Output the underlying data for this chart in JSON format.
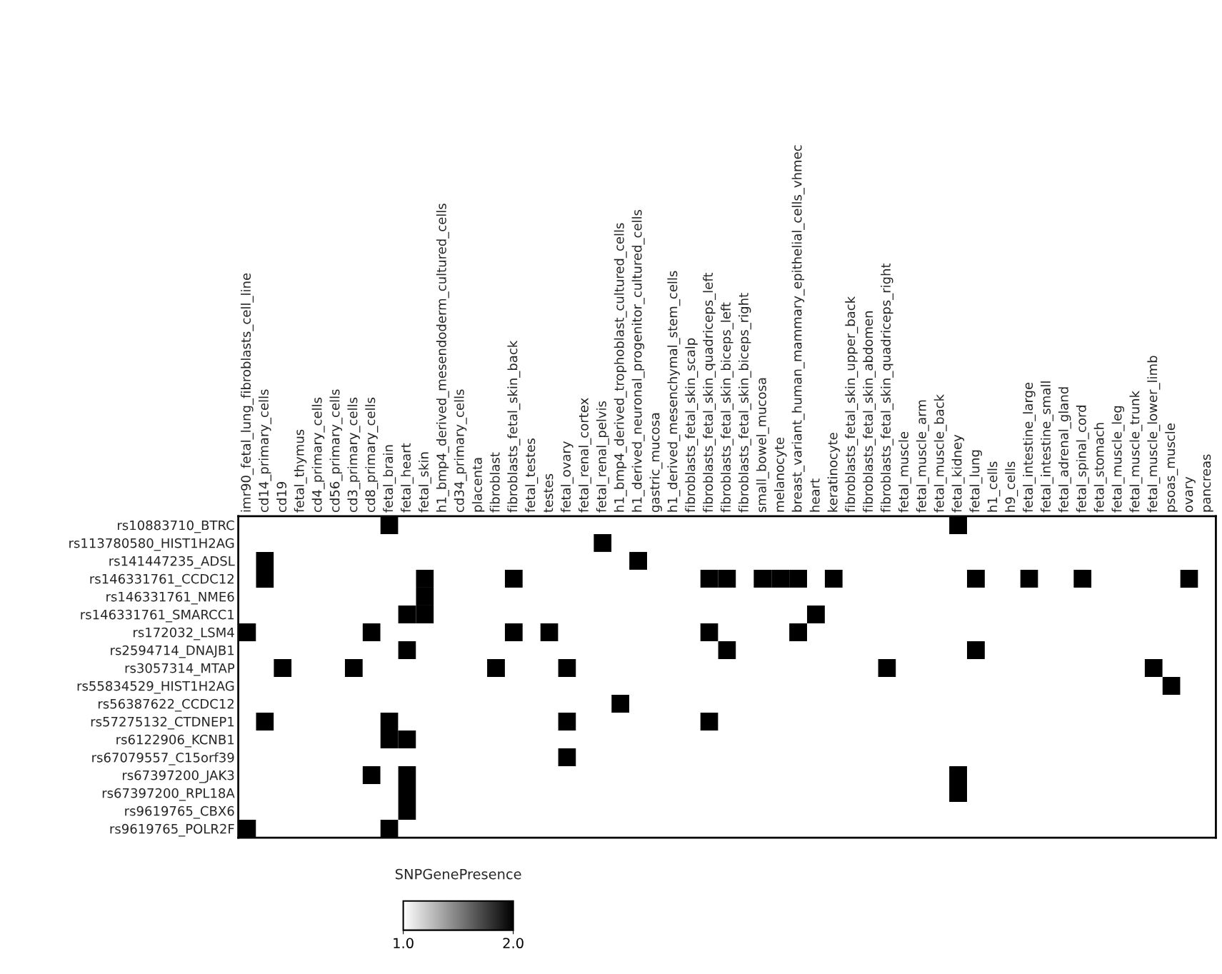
{
  "chart_data": {
    "type": "heatmap",
    "categories": [
      "imr90_fetal_lung_fibroblasts_cell_line",
      "cd14_primary_cells",
      "cd19",
      "fetal_thymus",
      "cd4_primary_cells",
      "cd56_primary_cells",
      "cd3_primary_cells",
      "cd8_primary_cells",
      "fetal_brain",
      "fetal_heart",
      "fetal_skin",
      "h1_bmp4_derived_mesendoderm_cultured_cells",
      "cd34_primary_cells",
      "placenta",
      "fibroblast",
      "fibroblasts_fetal_skin_back",
      "fetal_testes",
      "testes",
      "fetal_ovary",
      "fetal_renal_cortex",
      "fetal_renal_pelvis",
      "h1_bmp4_derived_trophoblast_cultured_cells",
      "h1_derived_neuronal_progenitor_cultured_cells",
      "gastric_mucosa",
      "h1_derived_mesenchymal_stem_cells",
      "fibroblasts_fetal_skin_scalp",
      "fibroblasts_fetal_skin_quadriceps_left",
      "fibroblasts_fetal_skin_biceps_left",
      "fibroblasts_fetal_skin_biceps_right",
      "small_bowel_mucosa",
      "melanocyte",
      "breast_variant_human_mammary_epithelial_cells_vhmec",
      "heart",
      "keratinocyte",
      "fibroblasts_fetal_skin_upper_back",
      "fibroblasts_fetal_skin_abdomen",
      "fibroblasts_fetal_skin_quadriceps_right",
      "fetal_muscle",
      "fetal_muscle_arm",
      "fetal_muscle_back",
      "fetal_kidney",
      "fetal_lung",
      "h1_cells",
      "h9_cells",
      "fetal_intestine_large",
      "fetal_intestine_small",
      "fetal_adrenal_gland",
      "fetal_spinal_cord",
      "fetal_stomach",
      "fetal_muscle_leg",
      "fetal_muscle_trunk",
      "fetal_muscle_lower_limb",
      "psoas_muscle",
      "ovary",
      "pancreas"
    ],
    "y_categories": [
      "rs10883710_BTRC",
      "rs113780580_HIST1H2AG",
      "rs141447235_ADSL",
      "rs146331761_CCDC12",
      "rs146331761_NME6",
      "rs146331761_SMARCC1",
      "rs172032_LSM4",
      "rs2594714_DNAJB1",
      "rs3057314_MTAP",
      "rs55834529_HIST1H2AG",
      "rs56387622_CCDC12",
      "rs57275132_CTDNEP1",
      "rs6122906_KCNB1",
      "rs67079557_C15orf39",
      "rs67397200_JAK3",
      "rs67397200_RPL18A",
      "rs9619765_CBX6",
      "rs9619765_POLR2F"
    ],
    "cells": [
      [
        1,
        1,
        1,
        1,
        1,
        1,
        1,
        1,
        2,
        1,
        1,
        1,
        1,
        1,
        1,
        1,
        1,
        1,
        1,
        1,
        1,
        1,
        1,
        1,
        1,
        1,
        1,
        1,
        1,
        1,
        1,
        1,
        1,
        1,
        1,
        1,
        1,
        1,
        1,
        1,
        2,
        1,
        1,
        1,
        1,
        1,
        1,
        1,
        1,
        1,
        1,
        1,
        1,
        1,
        1
      ],
      [
        1,
        1,
        1,
        1,
        1,
        1,
        1,
        1,
        1,
        1,
        1,
        1,
        1,
        1,
        1,
        1,
        1,
        1,
        1,
        1,
        2,
        1,
        1,
        1,
        1,
        1,
        1,
        1,
        1,
        1,
        1,
        1,
        1,
        1,
        1,
        1,
        1,
        1,
        1,
        1,
        1,
        1,
        1,
        1,
        1,
        1,
        1,
        1,
        1,
        1,
        1,
        1,
        1,
        1,
        1
      ],
      [
        1,
        2,
        1,
        1,
        1,
        1,
        1,
        1,
        1,
        1,
        1,
        1,
        1,
        1,
        1,
        1,
        1,
        1,
        1,
        1,
        1,
        1,
        2,
        1,
        1,
        1,
        1,
        1,
        1,
        1,
        1,
        1,
        1,
        1,
        1,
        1,
        1,
        1,
        1,
        1,
        1,
        1,
        1,
        1,
        1,
        1,
        1,
        1,
        1,
        1,
        1,
        1,
        1,
        1,
        1
      ],
      [
        1,
        2,
        1,
        1,
        1,
        1,
        1,
        1,
        1,
        1,
        2,
        1,
        1,
        1,
        1,
        2,
        1,
        1,
        1,
        1,
        1,
        1,
        1,
        1,
        1,
        1,
        2,
        2,
        1,
        2,
        2,
        2,
        1,
        2,
        1,
        1,
        1,
        1,
        1,
        1,
        1,
        2,
        1,
        1,
        2,
        1,
        1,
        2,
        1,
        1,
        1,
        1,
        1,
        2,
        1
      ],
      [
        1,
        1,
        1,
        1,
        1,
        1,
        1,
        1,
        1,
        1,
        2,
        1,
        1,
        1,
        1,
        1,
        1,
        1,
        1,
        1,
        1,
        1,
        1,
        1,
        1,
        1,
        1,
        1,
        1,
        1,
        1,
        1,
        1,
        1,
        1,
        1,
        1,
        1,
        1,
        1,
        1,
        1,
        1,
        1,
        1,
        1,
        1,
        1,
        1,
        1,
        1,
        1,
        1,
        1,
        1
      ],
      [
        1,
        1,
        1,
        1,
        1,
        1,
        1,
        1,
        1,
        2,
        2,
        1,
        1,
        1,
        1,
        1,
        1,
        1,
        1,
        1,
        1,
        1,
        1,
        1,
        1,
        1,
        1,
        1,
        1,
        1,
        1,
        1,
        2,
        1,
        1,
        1,
        1,
        1,
        1,
        1,
        1,
        1,
        1,
        1,
        1,
        1,
        1,
        1,
        1,
        1,
        1,
        1,
        1,
        1,
        1
      ],
      [
        2,
        1,
        1,
        1,
        1,
        1,
        1,
        2,
        1,
        1,
        1,
        1,
        1,
        1,
        1,
        2,
        1,
        2,
        1,
        1,
        1,
        1,
        1,
        1,
        1,
        1,
        2,
        1,
        1,
        1,
        1,
        2,
        1,
        1,
        1,
        1,
        1,
        1,
        1,
        1,
        1,
        1,
        1,
        1,
        1,
        1,
        1,
        1,
        1,
        1,
        1,
        1,
        1,
        1,
        1
      ],
      [
        1,
        1,
        1,
        1,
        1,
        1,
        1,
        1,
        1,
        2,
        1,
        1,
        1,
        1,
        1,
        1,
        1,
        1,
        1,
        1,
        1,
        1,
        1,
        1,
        1,
        1,
        1,
        2,
        1,
        1,
        1,
        1,
        1,
        1,
        1,
        1,
        1,
        1,
        1,
        1,
        1,
        2,
        1,
        1,
        1,
        1,
        1,
        1,
        1,
        1,
        1,
        1,
        1,
        1,
        1
      ],
      [
        1,
        1,
        2,
        1,
        1,
        1,
        2,
        1,
        1,
        1,
        1,
        1,
        1,
        1,
        2,
        1,
        1,
        1,
        2,
        1,
        1,
        1,
        1,
        1,
        1,
        1,
        1,
        1,
        1,
        1,
        1,
        1,
        1,
        1,
        1,
        1,
        2,
        1,
        1,
        1,
        1,
        1,
        1,
        1,
        1,
        1,
        1,
        1,
        1,
        1,
        1,
        2,
        1,
        1,
        1
      ],
      [
        1,
        1,
        1,
        1,
        1,
        1,
        1,
        1,
        1,
        1,
        1,
        1,
        1,
        1,
        1,
        1,
        1,
        1,
        1,
        1,
        1,
        1,
        1,
        1,
        1,
        1,
        1,
        1,
        1,
        1,
        1,
        1,
        1,
        1,
        1,
        1,
        1,
        1,
        1,
        1,
        1,
        1,
        1,
        1,
        1,
        1,
        1,
        1,
        1,
        1,
        1,
        1,
        2,
        1,
        1
      ],
      [
        1,
        1,
        1,
        1,
        1,
        1,
        1,
        1,
        1,
        1,
        1,
        1,
        1,
        1,
        1,
        1,
        1,
        1,
        1,
        1,
        1,
        2,
        1,
        1,
        1,
        1,
        1,
        1,
        1,
        1,
        1,
        1,
        1,
        1,
        1,
        1,
        1,
        1,
        1,
        1,
        1,
        1,
        1,
        1,
        1,
        1,
        1,
        1,
        1,
        1,
        1,
        1,
        1,
        1,
        1
      ],
      [
        1,
        2,
        1,
        1,
        1,
        1,
        1,
        1,
        2,
        1,
        1,
        1,
        1,
        1,
        1,
        1,
        1,
        1,
        2,
        1,
        1,
        1,
        1,
        1,
        1,
        1,
        2,
        1,
        1,
        1,
        1,
        1,
        1,
        1,
        1,
        1,
        1,
        1,
        1,
        1,
        1,
        1,
        1,
        1,
        1,
        1,
        1,
        1,
        1,
        1,
        1,
        1,
        1,
        1,
        1
      ],
      [
        1,
        1,
        1,
        1,
        1,
        1,
        1,
        1,
        2,
        2,
        1,
        1,
        1,
        1,
        1,
        1,
        1,
        1,
        1,
        1,
        1,
        1,
        1,
        1,
        1,
        1,
        1,
        1,
        1,
        1,
        1,
        1,
        1,
        1,
        1,
        1,
        1,
        1,
        1,
        1,
        1,
        1,
        1,
        1,
        1,
        1,
        1,
        1,
        1,
        1,
        1,
        1,
        1,
        1,
        1
      ],
      [
        1,
        1,
        1,
        1,
        1,
        1,
        1,
        1,
        1,
        1,
        1,
        1,
        1,
        1,
        1,
        1,
        1,
        1,
        2,
        1,
        1,
        1,
        1,
        1,
        1,
        1,
        1,
        1,
        1,
        1,
        1,
        1,
        1,
        1,
        1,
        1,
        1,
        1,
        1,
        1,
        1,
        1,
        1,
        1,
        1,
        1,
        1,
        1,
        1,
        1,
        1,
        1,
        1,
        1,
        1
      ],
      [
        1,
        1,
        1,
        1,
        1,
        1,
        1,
        2,
        1,
        2,
        1,
        1,
        1,
        1,
        1,
        1,
        1,
        1,
        1,
        1,
        1,
        1,
        1,
        1,
        1,
        1,
        1,
        1,
        1,
        1,
        1,
        1,
        1,
        1,
        1,
        1,
        1,
        1,
        1,
        1,
        2,
        1,
        1,
        1,
        1,
        1,
        1,
        1,
        1,
        1,
        1,
        1,
        1,
        1,
        1
      ],
      [
        1,
        1,
        1,
        1,
        1,
        1,
        1,
        1,
        1,
        2,
        1,
        1,
        1,
        1,
        1,
        1,
        1,
        1,
        1,
        1,
        1,
        1,
        1,
        1,
        1,
        1,
        1,
        1,
        1,
        1,
        1,
        1,
        1,
        1,
        1,
        1,
        1,
        1,
        1,
        1,
        2,
        1,
        1,
        1,
        1,
        1,
        1,
        1,
        1,
        1,
        1,
        1,
        1,
        1,
        1
      ],
      [
        1,
        1,
        1,
        1,
        1,
        1,
        1,
        1,
        1,
        2,
        1,
        1,
        1,
        1,
        1,
        1,
        1,
        1,
        1,
        1,
        1,
        1,
        1,
        1,
        1,
        1,
        1,
        1,
        1,
        1,
        1,
        1,
        1,
        1,
        1,
        1,
        1,
        1,
        1,
        1,
        1,
        1,
        1,
        1,
        1,
        1,
        1,
        1,
        1,
        1,
        1,
        1,
        1,
        1,
        1
      ],
      [
        2,
        1,
        1,
        1,
        1,
        1,
        1,
        1,
        2,
        1,
        1,
        1,
        1,
        1,
        1,
        1,
        1,
        1,
        1,
        1,
        1,
        1,
        1,
        1,
        1,
        1,
        1,
        1,
        1,
        1,
        1,
        1,
        1,
        1,
        1,
        1,
        1,
        1,
        1,
        1,
        1,
        1,
        1,
        1,
        1,
        1,
        1,
        1,
        1,
        1,
        1,
        1,
        1,
        1,
        1
      ]
    ],
    "colors": [
      "#ffffff",
      "#000000"
    ],
    "clabel": "SNPGenePresence",
    "clim": [
      1,
      2
    ],
    "cticks": [
      {
        "value": 1,
        "label": "1.0"
      },
      {
        "value": 2,
        "label": "2.0"
      }
    ]
  }
}
